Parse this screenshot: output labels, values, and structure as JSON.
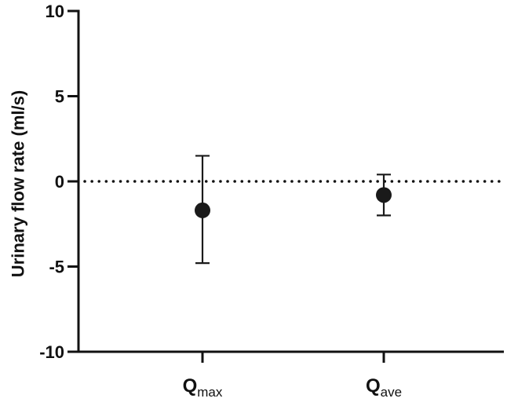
{
  "chart_data": {
    "type": "scatter",
    "ylabel": "Urinary flow rate (ml/s)",
    "xlabel": "",
    "ylim": [
      -10,
      10
    ],
    "yticks": [
      10,
      5,
      0,
      -5,
      -10
    ],
    "ytick_labels": [
      "10",
      "5",
      "0",
      "-5",
      "-10"
    ],
    "reference_line": {
      "y": 0,
      "style": "dotted"
    },
    "grid": false,
    "categories": [
      {
        "main": "Q",
        "sub": "max"
      },
      {
        "main": "Q",
        "sub": "ave"
      }
    ],
    "points": [
      {
        "mean": -1.7,
        "upper": 1.5,
        "lower": -4.8
      },
      {
        "mean": -0.8,
        "upper": 0.4,
        "lower": -2.0
      }
    ],
    "marker_color": "#1a1a1a",
    "axis_color": "#111111"
  }
}
